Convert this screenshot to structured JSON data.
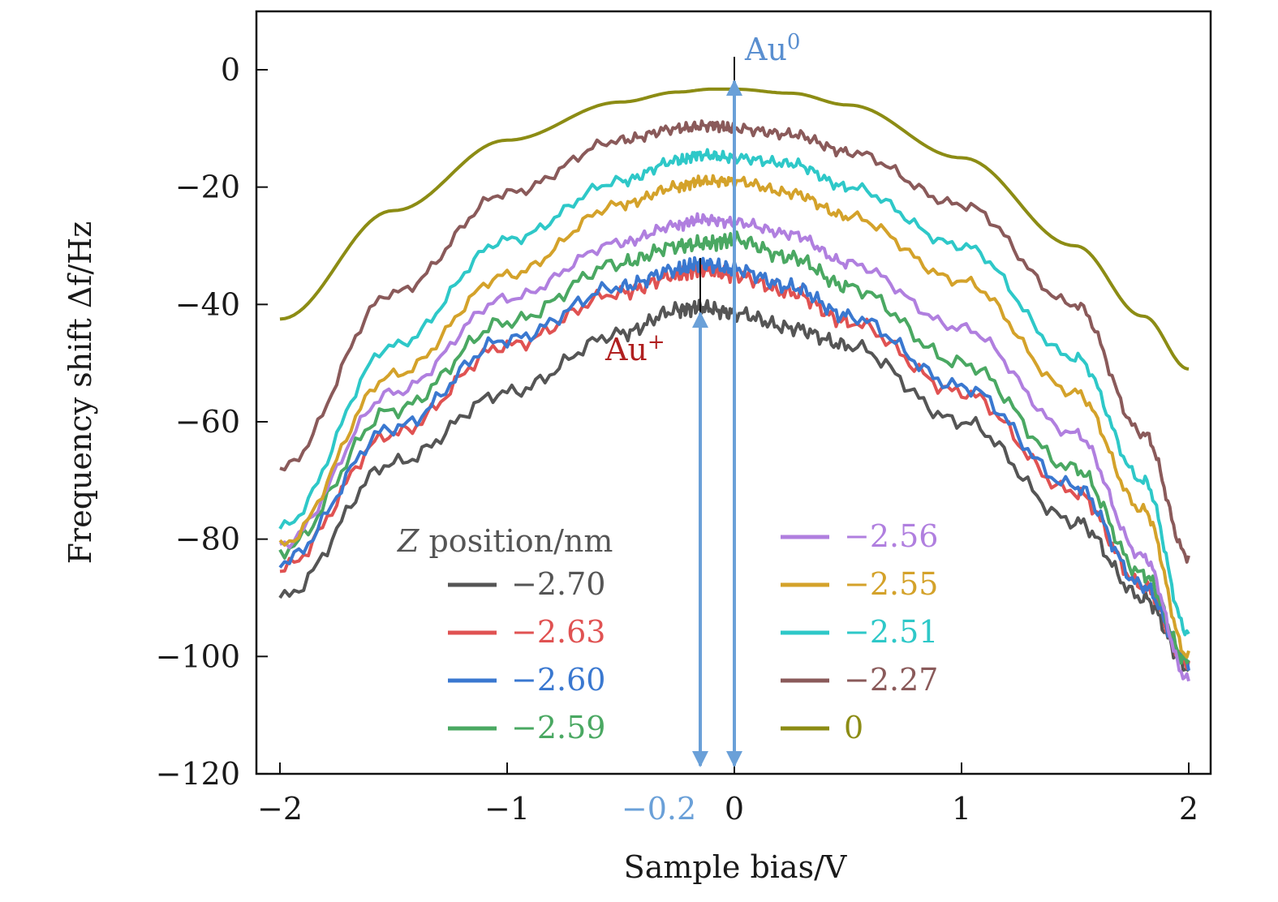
{
  "chart_data": {
    "type": "line",
    "xlabel": "Sample bias/V",
    "ylabel": "Frequency shift Δf/Hz",
    "xlim": [
      -2.1,
      2.1
    ],
    "ylim": [
      -120,
      10
    ],
    "x_ticks": [
      -2,
      -1,
      0,
      1,
      2
    ],
    "x_tick_labels": [
      "−2",
      "−1",
      "0",
      "1",
      "2"
    ],
    "y_ticks": [
      0,
      -20,
      -40,
      -60,
      -80,
      -100,
      -120
    ],
    "y_tick_labels": [
      "0",
      "−20",
      "−40",
      "−60",
      "−80",
      "−100",
      "−120"
    ],
    "grid": false,
    "legend": {
      "title": "Z position/nm",
      "placement": "bottom-center, two columns"
    },
    "series": [
      {
        "name": "−2.70",
        "color": "#555555",
        "points": [
          [
            -2,
            -90
          ],
          [
            -1.5,
            -67
          ],
          [
            -1,
            -55
          ],
          [
            -0.5,
            -45
          ],
          [
            -0.25,
            -41
          ],
          [
            -0.15,
            -40.5
          ],
          [
            0,
            -41.5
          ],
          [
            0.25,
            -44
          ],
          [
            0.5,
            -47
          ],
          [
            1,
            -60
          ],
          [
            1.5,
            -77
          ],
          [
            1.8,
            -90
          ],
          [
            2,
            -102
          ]
        ]
      },
      {
        "name": "−2.63",
        "color": "#e05252",
        "points": [
          [
            -2,
            -85
          ],
          [
            -1.5,
            -62
          ],
          [
            -1,
            -47
          ],
          [
            -0.5,
            -38
          ],
          [
            -0.25,
            -35
          ],
          [
            -0.15,
            -34
          ],
          [
            0,
            -35
          ],
          [
            0.25,
            -38
          ],
          [
            0.5,
            -43
          ],
          [
            1,
            -55
          ],
          [
            1.5,
            -72
          ],
          [
            1.8,
            -88
          ],
          [
            2,
            -101
          ]
        ]
      },
      {
        "name": "−2.60",
        "color": "#3a78d0",
        "points": [
          [
            -2,
            -84
          ],
          [
            -1.5,
            -61
          ],
          [
            -1,
            -46
          ],
          [
            -0.5,
            -37
          ],
          [
            -0.25,
            -34
          ],
          [
            -0.15,
            -33
          ],
          [
            0,
            -34
          ],
          [
            0.25,
            -37
          ],
          [
            0.5,
            -42
          ],
          [
            1,
            -54
          ],
          [
            1.5,
            -71
          ],
          [
            1.8,
            -88
          ],
          [
            2,
            -101
          ]
        ]
      },
      {
        "name": "−2.59",
        "color": "#4aa862",
        "points": [
          [
            -2,
            -82
          ],
          [
            -1.5,
            -58
          ],
          [
            -1,
            -43
          ],
          [
            -0.5,
            -33
          ],
          [
            -0.25,
            -30
          ],
          [
            -0.1,
            -29.5
          ],
          [
            0,
            -29
          ],
          [
            0.25,
            -32
          ],
          [
            0.5,
            -37
          ],
          [
            1,
            -50
          ],
          [
            1.5,
            -68
          ],
          [
            1.8,
            -86
          ],
          [
            2,
            -101
          ]
        ]
      },
      {
        "name": "−2.56",
        "color": "#b07fdf",
        "points": [
          [
            -2,
            -81
          ],
          [
            -1.5,
            -55
          ],
          [
            -1,
            -39
          ],
          [
            -0.5,
            -29.5
          ],
          [
            -0.25,
            -26.5
          ],
          [
            -0.15,
            -25.5
          ],
          [
            0,
            -26
          ],
          [
            0.25,
            -28
          ],
          [
            0.5,
            -33
          ],
          [
            1,
            -44
          ],
          [
            1.5,
            -62
          ],
          [
            1.8,
            -83
          ],
          [
            2,
            -104
          ]
        ]
      },
      {
        "name": "−2.55",
        "color": "#d4a22a",
        "points": [
          [
            -2,
            -81
          ],
          [
            -1.5,
            -52
          ],
          [
            -1,
            -35
          ],
          [
            -0.5,
            -23
          ],
          [
            -0.25,
            -20
          ],
          [
            -0.15,
            -19
          ],
          [
            0,
            -19
          ],
          [
            0.25,
            -21
          ],
          [
            0.5,
            -25
          ],
          [
            1,
            -36
          ],
          [
            1.5,
            -55
          ],
          [
            1.8,
            -75
          ],
          [
            2,
            -100
          ]
        ]
      },
      {
        "name": "−2.51",
        "color": "#2ec8c8",
        "points": [
          [
            -2,
            -78
          ],
          [
            -1.5,
            -47
          ],
          [
            -1,
            -29
          ],
          [
            -0.5,
            -19
          ],
          [
            -0.25,
            -15.5
          ],
          [
            -0.15,
            -14.5
          ],
          [
            0,
            -15
          ],
          [
            0.25,
            -16
          ],
          [
            0.5,
            -20
          ],
          [
            1,
            -30
          ],
          [
            1.5,
            -49
          ],
          [
            1.8,
            -70
          ],
          [
            2,
            -96
          ]
        ]
      },
      {
        "name": "−2.27",
        "color": "#8a5a5a",
        "points": [
          [
            -2,
            -68
          ],
          [
            -1.5,
            -38
          ],
          [
            -1,
            -21
          ],
          [
            -0.5,
            -12
          ],
          [
            -0.25,
            -10
          ],
          [
            -0.1,
            -9.5
          ],
          [
            0,
            -10
          ],
          [
            0.25,
            -11
          ],
          [
            0.5,
            -14
          ],
          [
            1,
            -23
          ],
          [
            1.5,
            -40
          ],
          [
            1.8,
            -62
          ],
          [
            2,
            -83
          ]
        ]
      },
      {
        "name": "0",
        "color": "#8c8c14",
        "points": [
          [
            -2,
            -42.5
          ],
          [
            -1.5,
            -24
          ],
          [
            -1,
            -12
          ],
          [
            -0.5,
            -5.5
          ],
          [
            -0.25,
            -3.8
          ],
          [
            -0.1,
            -3.3
          ],
          [
            0,
            -3.3
          ],
          [
            0.25,
            -4
          ],
          [
            0.5,
            -6
          ],
          [
            1,
            -15
          ],
          [
            1.5,
            -30
          ],
          [
            1.8,
            -42
          ],
          [
            2,
            -51
          ]
        ]
      }
    ],
    "annotations": [
      {
        "text": "Au",
        "sup": "0",
        "color": "#5a8fd0",
        "x": 0
      },
      {
        "text": "Au",
        "sup": "+",
        "color": "#b02020",
        "x": -0.15
      },
      {
        "text": "−0.2",
        "color": "#6aa0d8",
        "x": -0.15
      }
    ],
    "arrow_color": "#6aa0d8"
  }
}
